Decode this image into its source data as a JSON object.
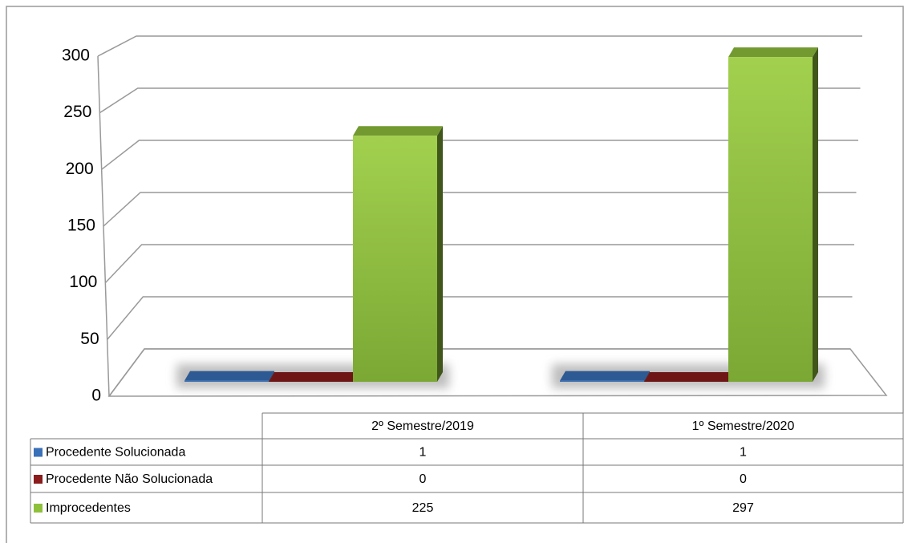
{
  "chart_data": {
    "type": "bar",
    "categories": [
      "2º Semestre/2019",
      "1º Semestre/2020"
    ],
    "series": [
      {
        "name": "Procedente Solucionada",
        "color": "#3a70b8",
        "values": [
          1,
          1
        ]
      },
      {
        "name": "Procedente Não Solucionada",
        "color": "#8a1c1c",
        "values": [
          0,
          0
        ]
      },
      {
        "name": "Improcedentes",
        "color": "#8fc03c",
        "values": [
          225,
          297
        ]
      }
    ],
    "ylim": [
      0,
      300
    ],
    "yticks": [
      0,
      50,
      100,
      150,
      200,
      250,
      300
    ],
    "grid": true
  }
}
